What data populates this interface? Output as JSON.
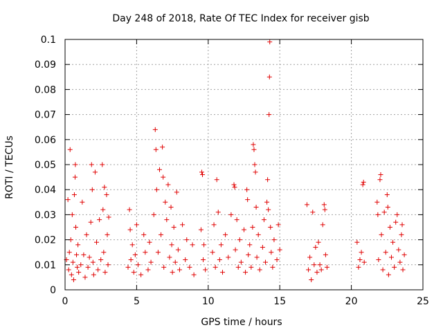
{
  "chart_data": {
    "type": "scatter",
    "title": "Day 248 of 2018, Rate Of TEC Index for receiver gisb",
    "xlabel": "GPS time / hours",
    "ylabel": "ROTI / TECUs",
    "xlim": [
      0,
      25
    ],
    "ylim": [
      0,
      0.1
    ],
    "x_ticks": [
      0,
      5,
      10,
      15,
      20,
      25
    ],
    "x_tick_labels": [
      "0",
      "5",
      "10",
      "15",
      "20",
      "25"
    ],
    "y_ticks": [
      0,
      0.01,
      0.02,
      0.03,
      0.04,
      0.05,
      0.06,
      0.07,
      0.08,
      0.09,
      0.1
    ],
    "y_tick_labels": [
      "0",
      "0.01",
      "0.02",
      "0.03",
      "0.04",
      "0.05",
      "0.06",
      "0.07",
      "0.08",
      "0.09",
      "0.1"
    ],
    "grid": true,
    "marker": "+",
    "color": "#e00000",
    "series": [
      {
        "name": "ROTI",
        "points": [
          [
            0.1,
            0.012
          ],
          [
            0.2,
            0.036
          ],
          [
            0.25,
            0.008
          ],
          [
            0.3,
            0.015
          ],
          [
            0.35,
            0.056
          ],
          [
            0.4,
            0.02
          ],
          [
            0.45,
            0.006
          ],
          [
            0.5,
            0.03
          ],
          [
            0.55,
            0.011
          ],
          [
            0.6,
            0.004
          ],
          [
            0.65,
            0.038
          ],
          [
            0.7,
            0.045
          ],
          [
            0.72,
            0.05
          ],
          [
            0.75,
            0.025
          ],
          [
            0.8,
            0.014
          ],
          [
            0.85,
            0.009
          ],
          [
            0.9,
            0.018
          ],
          [
            0.95,
            0.007
          ],
          [
            1.1,
            0.01
          ],
          [
            1.2,
            0.035
          ],
          [
            1.3,
            0.014
          ],
          [
            1.4,
            0.005
          ],
          [
            1.5,
            0.022
          ],
          [
            1.6,
            0.009
          ],
          [
            1.7,
            0.013
          ],
          [
            1.8,
            0.027
          ],
          [
            1.85,
            0.05
          ],
          [
            1.9,
            0.04
          ],
          [
            1.95,
            0.011
          ],
          [
            2.0,
            0.006
          ],
          [
            2.1,
            0.047
          ],
          [
            2.2,
            0.019
          ],
          [
            2.3,
            0.008
          ],
          [
            2.4,
            0.028
          ],
          [
            2.5,
            0.012
          ],
          [
            2.6,
            0.05
          ],
          [
            2.65,
            0.032
          ],
          [
            2.7,
            0.015
          ],
          [
            2.75,
            0.041
          ],
          [
            2.8,
            0.007
          ],
          [
            2.9,
            0.038
          ],
          [
            2.95,
            0.022
          ],
          [
            3.0,
            0.01
          ],
          [
            3.05,
            0.029
          ],
          [
            4.4,
            0.009
          ],
          [
            4.5,
            0.032
          ],
          [
            4.55,
            0.024
          ],
          [
            4.6,
            0.012
          ],
          [
            4.7,
            0.018
          ],
          [
            4.8,
            0.007
          ],
          [
            4.9,
            0.014
          ],
          [
            5.0,
            0.026
          ],
          [
            5.1,
            0.01
          ],
          [
            5.3,
            0.006
          ],
          [
            5.5,
            0.022
          ],
          [
            5.6,
            0.015
          ],
          [
            5.8,
            0.008
          ],
          [
            5.9,
            0.019
          ],
          [
            6.0,
            0.011
          ],
          [
            6.2,
            0.03
          ],
          [
            6.3,
            0.064
          ],
          [
            6.35,
            0.056
          ],
          [
            6.4,
            0.04
          ],
          [
            6.5,
            0.015
          ],
          [
            6.6,
            0.048
          ],
          [
            6.7,
            0.022
          ],
          [
            6.8,
            0.057
          ],
          [
            6.85,
            0.045
          ],
          [
            6.9,
            0.009
          ],
          [
            7.0,
            0.035
          ],
          [
            7.1,
            0.028
          ],
          [
            7.2,
            0.042
          ],
          [
            7.3,
            0.013
          ],
          [
            7.4,
            0.033
          ],
          [
            7.45,
            0.018
          ],
          [
            7.5,
            0.007
          ],
          [
            7.6,
            0.025
          ],
          [
            7.7,
            0.011
          ],
          [
            7.8,
            0.039
          ],
          [
            7.9,
            0.016
          ],
          [
            8.0,
            0.008
          ],
          [
            8.2,
            0.026
          ],
          [
            8.4,
            0.012
          ],
          [
            8.5,
            0.02
          ],
          [
            8.7,
            0.009
          ],
          [
            8.9,
            0.018
          ],
          [
            9.0,
            0.006
          ],
          [
            9.5,
            0.024
          ],
          [
            9.55,
            0.047
          ],
          [
            9.6,
            0.046
          ],
          [
            9.65,
            0.012
          ],
          [
            9.7,
            0.018
          ],
          [
            9.8,
            0.008
          ],
          [
            10.3,
            0.015
          ],
          [
            10.4,
            0.026
          ],
          [
            10.5,
            0.009
          ],
          [
            10.6,
            0.044
          ],
          [
            10.7,
            0.031
          ],
          [
            10.8,
            0.012
          ],
          [
            10.9,
            0.018
          ],
          [
            11.0,
            0.007
          ],
          [
            11.2,
            0.022
          ],
          [
            11.4,
            0.013
          ],
          [
            11.6,
            0.03
          ],
          [
            11.8,
            0.042
          ],
          [
            11.85,
            0.041
          ],
          [
            11.9,
            0.016
          ],
          [
            12.0,
            0.028
          ],
          [
            12.1,
            0.009
          ],
          [
            12.2,
            0.02
          ],
          [
            12.3,
            0.011
          ],
          [
            12.5,
            0.024
          ],
          [
            12.6,
            0.007
          ],
          [
            12.7,
            0.04
          ],
          [
            12.75,
            0.036
          ],
          [
            12.8,
            0.014
          ],
          [
            12.9,
            0.018
          ],
          [
            13.0,
            0.009
          ],
          [
            13.1,
            0.025
          ],
          [
            13.15,
            0.058
          ],
          [
            13.2,
            0.056
          ],
          [
            13.25,
            0.05
          ],
          [
            13.3,
            0.047
          ],
          [
            13.35,
            0.033
          ],
          [
            13.4,
            0.013
          ],
          [
            13.5,
            0.022
          ],
          [
            13.6,
            0.008
          ],
          [
            13.8,
            0.017
          ],
          [
            13.9,
            0.028
          ],
          [
            14.0,
            0.011
          ],
          [
            14.1,
            0.035
          ],
          [
            14.15,
            0.044
          ],
          [
            14.2,
            0.032
          ],
          [
            14.25,
            0.07
          ],
          [
            14.28,
            0.085
          ],
          [
            14.3,
            0.099
          ],
          [
            14.35,
            0.025
          ],
          [
            14.4,
            0.015
          ],
          [
            14.5,
            0.009
          ],
          [
            14.6,
            0.02
          ],
          [
            14.8,
            0.012
          ],
          [
            14.9,
            0.026
          ],
          [
            15.0,
            0.016
          ],
          [
            16.9,
            0.034
          ],
          [
            17.0,
            0.008
          ],
          [
            17.1,
            0.013
          ],
          [
            17.2,
            0.004
          ],
          [
            17.3,
            0.031
          ],
          [
            17.4,
            0.01
          ],
          [
            17.5,
            0.017
          ],
          [
            17.6,
            0.007
          ],
          [
            17.7,
            0.019
          ],
          [
            17.8,
            0.01
          ],
          [
            17.9,
            0.008
          ],
          [
            18.0,
            0.026
          ],
          [
            18.1,
            0.034
          ],
          [
            18.15,
            0.032
          ],
          [
            18.2,
            0.014
          ],
          [
            18.3,
            0.009
          ],
          [
            20.4,
            0.019
          ],
          [
            20.5,
            0.009
          ],
          [
            20.6,
            0.012
          ],
          [
            20.7,
            0.015
          ],
          [
            20.8,
            0.042
          ],
          [
            20.85,
            0.043
          ],
          [
            20.9,
            0.011
          ],
          [
            21.8,
            0.035
          ],
          [
            21.85,
            0.03
          ],
          [
            21.9,
            0.012
          ],
          [
            22.0,
            0.044
          ],
          [
            22.05,
            0.046
          ],
          [
            22.1,
            0.022
          ],
          [
            22.2,
            0.008
          ],
          [
            22.3,
            0.031
          ],
          [
            22.4,
            0.015
          ],
          [
            22.5,
            0.038
          ],
          [
            22.55,
            0.033
          ],
          [
            22.6,
            0.006
          ],
          [
            22.7,
            0.025
          ],
          [
            22.8,
            0.013
          ],
          [
            22.9,
            0.019
          ],
          [
            23.0,
            0.009
          ],
          [
            23.1,
            0.027
          ],
          [
            23.2,
            0.03
          ],
          [
            23.3,
            0.016
          ],
          [
            23.4,
            0.011
          ],
          [
            23.5,
            0.022
          ],
          [
            23.55,
            0.026
          ],
          [
            23.6,
            0.008
          ],
          [
            23.7,
            0.014
          ]
        ]
      }
    ]
  }
}
